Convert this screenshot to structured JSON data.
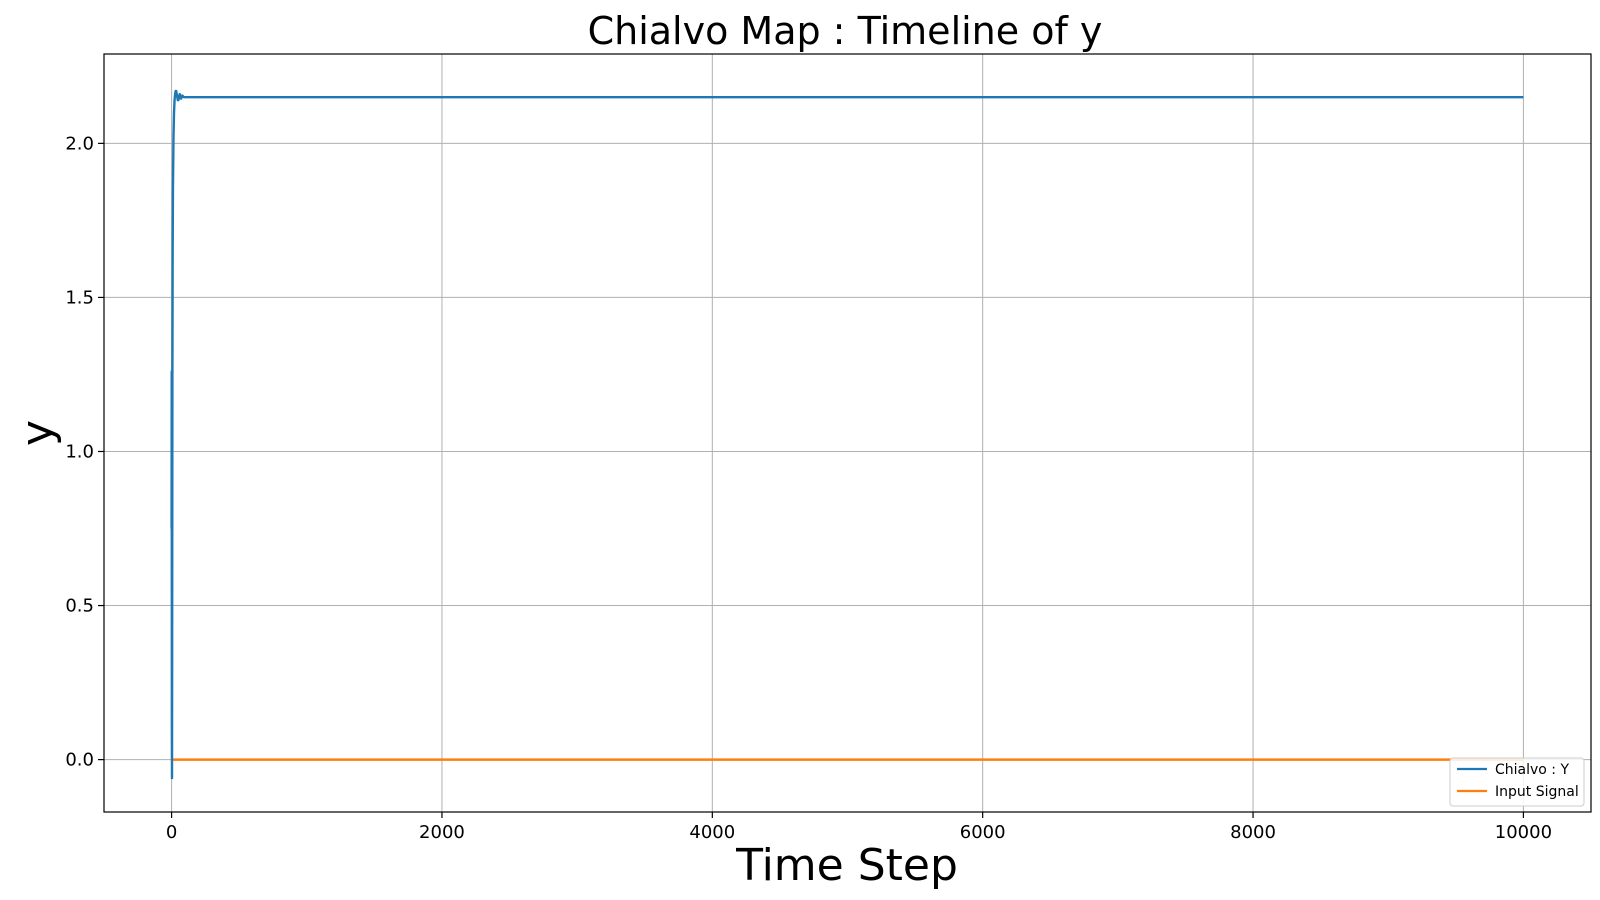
{
  "chart_data": {
    "type": "line",
    "title": "Chialvo Map : Timeline of y",
    "xlabel": "Time Step",
    "ylabel": "y",
    "xlim": [
      -500,
      10500
    ],
    "ylim": [
      -0.17,
      2.29
    ],
    "xticks": [
      0,
      2000,
      4000,
      6000,
      8000,
      10000
    ],
    "yticks": [
      0.0,
      0.5,
      1.0,
      1.5,
      2.0
    ],
    "grid": true,
    "legend_position": "lower-right",
    "series": [
      {
        "name": "Chialvo : Y",
        "color": "#1f77b4",
        "x": [
          0,
          1,
          2,
          3,
          4,
          5,
          6,
          8,
          10,
          14,
          18,
          22,
          26,
          30,
          34,
          38,
          42,
          46,
          50,
          55,
          60,
          65,
          70,
          75,
          80,
          90,
          100,
          120,
          150,
          200,
          500,
          1000,
          2000,
          4000,
          6000,
          8000,
          10000
        ],
        "y": [
          0.75,
          1.26,
          0.1,
          -0.06,
          0.3,
          0.8,
          1.25,
          1.65,
          1.85,
          2.02,
          2.1,
          2.14,
          2.16,
          2.17,
          2.17,
          2.16,
          2.15,
          2.14,
          2.14,
          2.15,
          2.16,
          2.155,
          2.145,
          2.15,
          2.155,
          2.15,
          2.15,
          2.15,
          2.15,
          2.15,
          2.15,
          2.15,
          2.15,
          2.15,
          2.15,
          2.15,
          2.15
        ]
      },
      {
        "name": "Input Signal",
        "color": "#ff7f0e",
        "x": [
          0,
          10000
        ],
        "y": [
          0.0,
          0.0
        ]
      }
    ]
  }
}
